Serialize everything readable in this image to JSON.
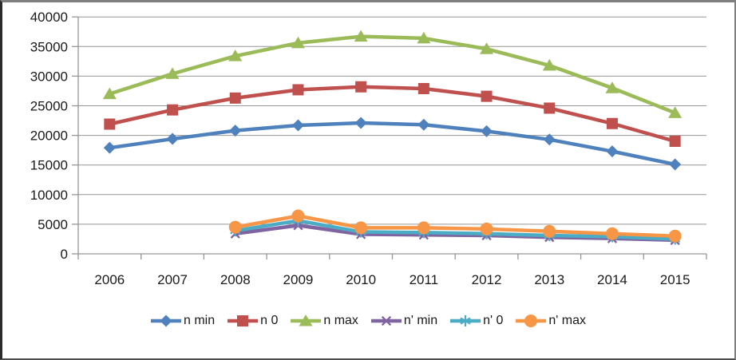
{
  "chart_data": {
    "type": "line",
    "title": "",
    "categories": [
      "2006",
      "2007",
      "2008",
      "2009",
      "2010",
      "2011",
      "2012",
      "2013",
      "2014",
      "2015"
    ],
    "series": [
      {
        "name": "n min",
        "color": "#4F81BD",
        "marker": "diamond",
        "values": [
          17900,
          19400,
          20800,
          21700,
          22100,
          21800,
          20700,
          19300,
          17300,
          15100
        ]
      },
      {
        "name": "n 0",
        "color": "#C0504D",
        "marker": "square",
        "values": [
          21900,
          24300,
          26300,
          27700,
          28200,
          27900,
          26600,
          24600,
          22000,
          19000
        ]
      },
      {
        "name": "n max",
        "color": "#9BBB59",
        "marker": "triangle",
        "values": [
          27000,
          30400,
          33400,
          35600,
          36700,
          36400,
          34600,
          31800,
          28000,
          23800
        ]
      },
      {
        "name": "n' min",
        "color": "#8064A2",
        "marker": "x",
        "values": [
          null,
          null,
          3400,
          4800,
          3300,
          3200,
          3100,
          2800,
          2600,
          2300
        ]
      },
      {
        "name": "n' 0",
        "color": "#4BACC6",
        "marker": "asterisk",
        "values": [
          null,
          null,
          3900,
          5600,
          3700,
          3600,
          3400,
          3100,
          2900,
          2500
        ]
      },
      {
        "name": "n' max",
        "color": "#F79646",
        "marker": "circle",
        "values": [
          null,
          null,
          4500,
          6400,
          4400,
          4400,
          4200,
          3800,
          3400,
          3000
        ]
      }
    ],
    "xlabel": "",
    "ylabel": "",
    "ylim": [
      0,
      40000
    ],
    "ytick_step": 5000,
    "ytick_labels": [
      "0",
      "5000",
      "10000",
      "15000",
      "20000",
      "25000",
      "30000",
      "35000",
      "40000"
    ],
    "grid": true,
    "legend_position": "bottom",
    "grid_color": "#969696",
    "axis_color": "#969696",
    "text_color": "#1a1a1a",
    "background_color": "#ffffff"
  }
}
